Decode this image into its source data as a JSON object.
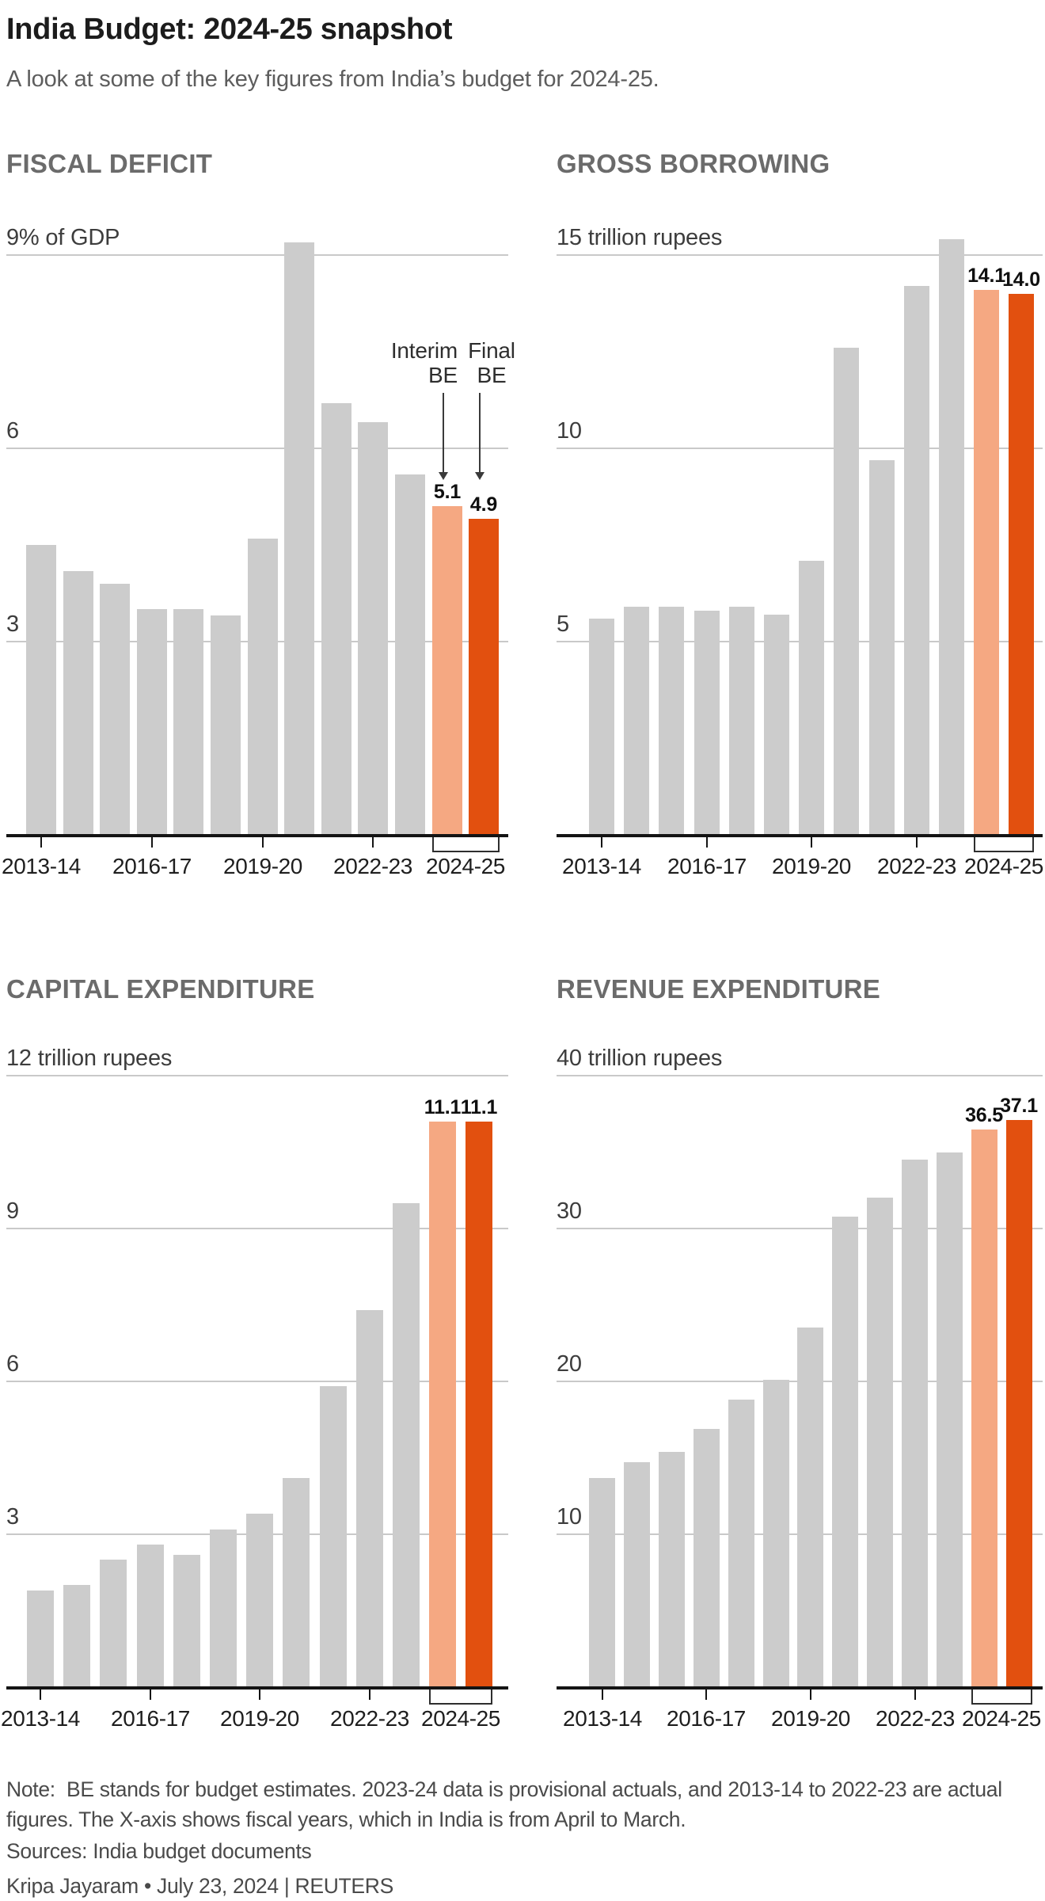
{
  "page": {
    "title": "India Budget: 2024-25 snapshot",
    "subtitle": "A look at some of the key figures from India’s budget for 2024-25.",
    "note": "Note:  BE stands for budget estimates. 2023-24 data is provisional actuals, and 2013-14 to 2022-23 are actual figures. The X-axis shows fiscal years, which in India is from April to March.",
    "sources": "Sources: India budget documents",
    "byline": "Kripa Jayaram • July 23, 2024 | REUTERS"
  },
  "colors": {
    "bar_gray": "#cccccc",
    "interim_orange": "#f5a882",
    "final_orange": "#e2500f",
    "gridline": "#c9c9c9",
    "axis": "#141414",
    "header_gray": "#6b6b6b"
  },
  "chart_data": [
    {
      "id": "fiscal-deficit",
      "type": "bar",
      "title": "FISCAL DEFICIT",
      "y_top_label": "9% of GDP",
      "ylabel": "% of GDP",
      "ylim": [
        0,
        9
      ],
      "gridlines": [
        9,
        6,
        3
      ],
      "categories": [
        "2013-14",
        "2014-15",
        "2015-16",
        "2016-17",
        "2017-18",
        "2018-19",
        "2019-20",
        "2020-21",
        "2021-22",
        "2022-23",
        "2023-24",
        "2024-25 Interim BE",
        "2024-25 Final BE"
      ],
      "values": [
        4.5,
        4.1,
        3.9,
        3.5,
        3.5,
        3.4,
        4.6,
        9.2,
        6.7,
        6.4,
        5.6,
        5.1,
        4.9
      ],
      "value_labels": {
        "11": "5.1",
        "12": "4.9"
      },
      "x_ticks": [
        {
          "index": 0,
          "label": "2013-14"
        },
        {
          "index": 3,
          "label": "2016-17"
        },
        {
          "index": 6,
          "label": "2019-20"
        },
        {
          "index": 9,
          "label": "2022-23"
        }
      ],
      "bracket": {
        "from": 11,
        "to": 12,
        "label": "2024-25"
      },
      "annotation": {
        "interim_lines": [
          "Interim",
          "BE"
        ],
        "final_lines": [
          "Final",
          "BE"
        ]
      }
    },
    {
      "id": "gross-borrowing",
      "type": "bar",
      "title": "GROSS BORROWING",
      "y_top_label": "15 trillion rupees",
      "ylabel": "trillion rupees",
      "ylim": [
        0,
        15
      ],
      "gridlines": [
        15,
        10,
        5
      ],
      "categories": [
        "2013-14",
        "2014-15",
        "2015-16",
        "2016-17",
        "2017-18",
        "2018-19",
        "2019-20",
        "2020-21",
        "2021-22",
        "2022-23",
        "2023-24",
        "2024-25 Interim BE",
        "2024-25 Final BE"
      ],
      "values": [
        5.6,
        5.9,
        5.9,
        5.8,
        5.9,
        5.7,
        7.1,
        12.6,
        9.7,
        14.2,
        15.4,
        14.1,
        14.0
      ],
      "value_labels": {
        "11": "14.1",
        "12": "14.0"
      },
      "x_ticks": [
        {
          "index": 0,
          "label": "2013-14"
        },
        {
          "index": 3,
          "label": "2016-17"
        },
        {
          "index": 6,
          "label": "2019-20"
        },
        {
          "index": 9,
          "label": "2022-23"
        }
      ],
      "bracket": {
        "from": 11,
        "to": 12,
        "label": "2024-25"
      }
    },
    {
      "id": "capital-expenditure",
      "type": "bar",
      "title": "CAPITAL EXPENDITURE",
      "y_top_label": "12 trillion rupees",
      "ylabel": "trillion rupees",
      "ylim": [
        0,
        12
      ],
      "gridlines": [
        12,
        9,
        6,
        3
      ],
      "categories": [
        "2013-14",
        "2014-15",
        "2015-16",
        "2016-17",
        "2017-18",
        "2018-19",
        "2019-20",
        "2020-21",
        "2021-22",
        "2022-23",
        "2023-24",
        "2024-25 Interim BE",
        "2024-25 Final BE"
      ],
      "values": [
        1.9,
        2.0,
        2.5,
        2.8,
        2.6,
        3.1,
        3.4,
        4.1,
        5.9,
        7.4,
        9.5,
        11.1,
        11.1
      ],
      "value_labels": {
        "11": "11.1",
        "12": "11.1"
      },
      "x_ticks": [
        {
          "index": 0,
          "label": "2013-14"
        },
        {
          "index": 3,
          "label": "2016-17"
        },
        {
          "index": 6,
          "label": "2019-20"
        },
        {
          "index": 9,
          "label": "2022-23"
        }
      ],
      "bracket": {
        "from": 11,
        "to": 12,
        "label": "2024-25"
      }
    },
    {
      "id": "revenue-expenditure",
      "type": "bar",
      "title": "REVENUE EXPENDITURE",
      "y_top_label": "40 trillion rupees",
      "ylabel": "trillion rupees",
      "ylim": [
        0,
        40
      ],
      "gridlines": [
        40,
        30,
        20,
        10
      ],
      "categories": [
        "2013-14",
        "2014-15",
        "2015-16",
        "2016-17",
        "2017-18",
        "2018-19",
        "2019-20",
        "2020-21",
        "2021-22",
        "2022-23",
        "2023-24",
        "2024-25 Interim BE",
        "2024-25 Final BE"
      ],
      "values": [
        13.7,
        14.7,
        15.4,
        16.9,
        18.8,
        20.1,
        23.5,
        30.8,
        32.0,
        34.5,
        35.0,
        36.5,
        37.1
      ],
      "value_labels": {
        "11": "36.5",
        "12": "37.1"
      },
      "x_ticks": [
        {
          "index": 0,
          "label": "2013-14"
        },
        {
          "index": 3,
          "label": "2016-17"
        },
        {
          "index": 6,
          "label": "2019-20"
        },
        {
          "index": 9,
          "label": "2022-23"
        }
      ],
      "bracket": {
        "from": 11,
        "to": 12,
        "label": "2024-25"
      }
    }
  ]
}
